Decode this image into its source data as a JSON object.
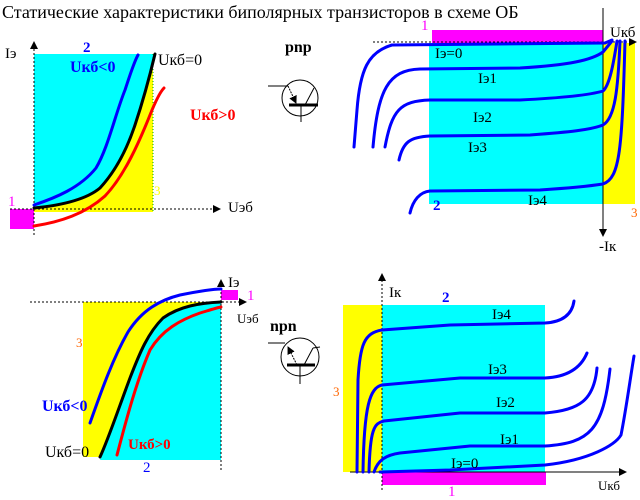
{
  "title": "Статические характеристики биполярных транзисторов в схеме ОБ",
  "colors": {
    "cyan": "#00ffff",
    "yellow": "#ffff00",
    "magenta": "#ff00ff",
    "blue": "#0000ff",
    "red": "#ff0000",
    "black": "#000000",
    "orange": "#ff6600"
  },
  "input_pnp": {
    "y_axis": "Iэ",
    "x_axis": "Uэб",
    "region_1": "1",
    "region_2": "2",
    "region_3": "3",
    "curves": {
      "negative": "Uкб<0",
      "zero": "Uкб=0",
      "positive": "Uкб>0"
    }
  },
  "output_pnp": {
    "transistor_label": "pnp",
    "x_axis": "Uкб",
    "y_axis": "-Iк",
    "region_1": "1",
    "region_2": "2",
    "region_3": "3",
    "curves": [
      "Iэ=0",
      "Iэ1",
      "Iэ2",
      "Iэ3",
      "Iэ4"
    ]
  },
  "input_npn": {
    "y_axis": "Iэ",
    "x_axis": "Uэб",
    "region_1": "1",
    "region_2": "2",
    "region_3": "3",
    "curves": {
      "negative": "Uкб<0",
      "zero": "Uкб=0",
      "positive": "Uкб>0"
    }
  },
  "output_npn": {
    "transistor_label": "npn",
    "x_axis": "Uкб",
    "y_axis": "Iк",
    "region_1": "1",
    "region_2": "2",
    "region_3": "3",
    "curves": [
      "Iэ=0",
      "Iэ1",
      "Iэ2",
      "Iэ3",
      "Iэ4"
    ]
  }
}
